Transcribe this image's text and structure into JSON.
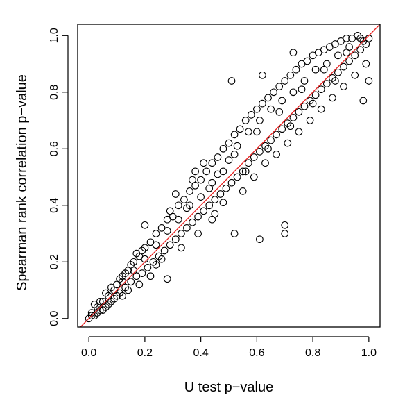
{
  "chart_data": {
    "type": "scatter",
    "title": "",
    "xlabel": "U test p−value",
    "ylabel": "Spearman rank correlation p−value",
    "xlim": [
      -0.04,
      1.04
    ],
    "ylim": [
      -0.03,
      1.04
    ],
    "xticks": [
      0.0,
      0.2,
      0.4,
      0.6,
      0.8,
      1.0
    ],
    "xtick_labels": [
      "0.0",
      "0.2",
      "0.4",
      "0.6",
      "0.8",
      "1.0"
    ],
    "yticks": [
      0.0,
      0.2,
      0.4,
      0.6,
      0.8,
      1.0
    ],
    "ytick_labels": [
      "0.0",
      "0.2",
      "0.4",
      "0.6",
      "0.8",
      "1.0"
    ],
    "grid": false,
    "point_color": "#000000",
    "reference_line": {
      "type": "y=x",
      "color": "#e8201f"
    },
    "points": [
      [
        0.0,
        0.0
      ],
      [
        0.01,
        0.02
      ],
      [
        0.02,
        0.01
      ],
      [
        0.03,
        0.04
      ],
      [
        0.04,
        0.03
      ],
      [
        0.05,
        0.06
      ],
      [
        0.06,
        0.04
      ],
      [
        0.07,
        0.08
      ],
      [
        0.08,
        0.06
      ],
      [
        0.09,
        0.1
      ],
      [
        0.1,
        0.12
      ],
      [
        0.11,
        0.09
      ],
      [
        0.12,
        0.15
      ],
      [
        0.13,
        0.11
      ],
      [
        0.14,
        0.17
      ],
      [
        0.15,
        0.13
      ],
      [
        0.16,
        0.2
      ],
      [
        0.17,
        0.15
      ],
      [
        0.18,
        0.22
      ],
      [
        0.19,
        0.16
      ],
      [
        0.2,
        0.25
      ],
      [
        0.21,
        0.18
      ],
      [
        0.22,
        0.27
      ],
      [
        0.23,
        0.2
      ],
      [
        0.24,
        0.3
      ],
      [
        0.25,
        0.22
      ],
      [
        0.26,
        0.32
      ],
      [
        0.27,
        0.24
      ],
      [
        0.28,
        0.35
      ],
      [
        0.29,
        0.26
      ],
      [
        0.3,
        0.36
      ],
      [
        0.31,
        0.28
      ],
      [
        0.32,
        0.4
      ],
      [
        0.33,
        0.3
      ],
      [
        0.34,
        0.42
      ],
      [
        0.35,
        0.32
      ],
      [
        0.36,
        0.45
      ],
      [
        0.37,
        0.34
      ],
      [
        0.38,
        0.47
      ],
      [
        0.39,
        0.36
      ],
      [
        0.4,
        0.49
      ],
      [
        0.41,
        0.38
      ],
      [
        0.42,
        0.52
      ],
      [
        0.43,
        0.4
      ],
      [
        0.44,
        0.55
      ],
      [
        0.45,
        0.42
      ],
      [
        0.46,
        0.57
      ],
      [
        0.47,
        0.44
      ],
      [
        0.48,
        0.6
      ],
      [
        0.49,
        0.46
      ],
      [
        0.5,
        0.62
      ],
      [
        0.51,
        0.48
      ],
      [
        0.52,
        0.65
      ],
      [
        0.53,
        0.5
      ],
      [
        0.54,
        0.67
      ],
      [
        0.55,
        0.52
      ],
      [
        0.56,
        0.7
      ],
      [
        0.57,
        0.55
      ],
      [
        0.58,
        0.72
      ],
      [
        0.59,
        0.57
      ],
      [
        0.6,
        0.74
      ],
      [
        0.61,
        0.59
      ],
      [
        0.62,
        0.76
      ],
      [
        0.63,
        0.61
      ],
      [
        0.64,
        0.78
      ],
      [
        0.65,
        0.63
      ],
      [
        0.66,
        0.8
      ],
      [
        0.67,
        0.65
      ],
      [
        0.68,
        0.82
      ],
      [
        0.69,
        0.67
      ],
      [
        0.7,
        0.84
      ],
      [
        0.71,
        0.69
      ],
      [
        0.72,
        0.86
      ],
      [
        0.73,
        0.71
      ],
      [
        0.74,
        0.88
      ],
      [
        0.75,
        0.73
      ],
      [
        0.76,
        0.9
      ],
      [
        0.77,
        0.75
      ],
      [
        0.78,
        0.91
      ],
      [
        0.79,
        0.77
      ],
      [
        0.8,
        0.93
      ],
      [
        0.81,
        0.79
      ],
      [
        0.82,
        0.94
      ],
      [
        0.83,
        0.81
      ],
      [
        0.84,
        0.95
      ],
      [
        0.85,
        0.83
      ],
      [
        0.86,
        0.96
      ],
      [
        0.87,
        0.85
      ],
      [
        0.88,
        0.97
      ],
      [
        0.89,
        0.87
      ],
      [
        0.9,
        0.98
      ],
      [
        0.91,
        0.89
      ],
      [
        0.92,
        0.99
      ],
      [
        0.93,
        0.91
      ],
      [
        0.94,
        0.99
      ],
      [
        0.95,
        0.93
      ],
      [
        0.96,
        1.0
      ],
      [
        0.97,
        0.95
      ],
      [
        0.98,
        0.98
      ],
      [
        0.99,
        0.97
      ],
      [
        1.0,
        0.99
      ],
      [
        1.0,
        0.84
      ],
      [
        0.51,
        0.84
      ],
      [
        0.61,
        0.28
      ],
      [
        0.7,
        0.3
      ],
      [
        0.7,
        0.33
      ],
      [
        0.52,
        0.3
      ],
      [
        0.28,
        0.14
      ],
      [
        0.45,
        0.37
      ],
      [
        0.73,
        0.94
      ],
      [
        0.62,
        0.86
      ],
      [
        0.38,
        0.52
      ],
      [
        0.2,
        0.33
      ],
      [
        0.98,
        0.77
      ],
      [
        0.02,
        0.05
      ],
      [
        0.03,
        0.02
      ],
      [
        0.05,
        0.03
      ],
      [
        0.06,
        0.09
      ],
      [
        0.08,
        0.11
      ],
      [
        0.09,
        0.07
      ],
      [
        0.11,
        0.14
      ],
      [
        0.12,
        0.08
      ],
      [
        0.14,
        0.1
      ],
      [
        0.15,
        0.19
      ],
      [
        0.17,
        0.23
      ],
      [
        0.18,
        0.12
      ],
      [
        0.22,
        0.15
      ],
      [
        0.24,
        0.19
      ],
      [
        0.26,
        0.21
      ],
      [
        0.29,
        0.38
      ],
      [
        0.31,
        0.44
      ],
      [
        0.33,
        0.25
      ],
      [
        0.35,
        0.39
      ],
      [
        0.37,
        0.49
      ],
      [
        0.39,
        0.3
      ],
      [
        0.41,
        0.55
      ],
      [
        0.43,
        0.46
      ],
      [
        0.44,
        0.35
      ],
      [
        0.46,
        0.51
      ],
      [
        0.48,
        0.41
      ],
      [
        0.5,
        0.56
      ],
      [
        0.53,
        0.61
      ],
      [
        0.55,
        0.45
      ],
      [
        0.57,
        0.66
      ],
      [
        0.59,
        0.5
      ],
      [
        0.61,
        0.7
      ],
      [
        0.63,
        0.55
      ],
      [
        0.65,
        0.74
      ],
      [
        0.67,
        0.58
      ],
      [
        0.69,
        0.77
      ],
      [
        0.71,
        0.62
      ],
      [
        0.73,
        0.8
      ],
      [
        0.75,
        0.66
      ],
      [
        0.77,
        0.84
      ],
      [
        0.79,
        0.7
      ],
      [
        0.81,
        0.88
      ],
      [
        0.83,
        0.74
      ],
      [
        0.85,
        0.9
      ],
      [
        0.87,
        0.78
      ],
      [
        0.89,
        0.93
      ],
      [
        0.91,
        0.82
      ],
      [
        0.93,
        0.96
      ],
      [
        0.95,
        0.86
      ],
      [
        0.97,
        0.99
      ],
      [
        0.99,
        0.9
      ],
      [
        0.92,
        0.94
      ],
      [
        0.88,
        0.84
      ],
      [
        0.84,
        0.88
      ],
      [
        0.8,
        0.76
      ],
      [
        0.76,
        0.81
      ],
      [
        0.72,
        0.68
      ],
      [
        0.68,
        0.73
      ],
      [
        0.64,
        0.6
      ],
      [
        0.6,
        0.66
      ],
      [
        0.56,
        0.52
      ],
      [
        0.52,
        0.58
      ],
      [
        0.48,
        0.52
      ],
      [
        0.44,
        0.48
      ],
      [
        0.4,
        0.43
      ],
      [
        0.36,
        0.4
      ],
      [
        0.32,
        0.35
      ],
      [
        0.28,
        0.31
      ],
      [
        0.24,
        0.26
      ],
      [
        0.2,
        0.21
      ],
      [
        0.16,
        0.17
      ],
      [
        0.12,
        0.13
      ],
      [
        0.07,
        0.05
      ],
      [
        0.04,
        0.06
      ],
      [
        0.01,
        0.01
      ],
      [
        0.1,
        0.08
      ],
      [
        0.13,
        0.16
      ],
      [
        0.19,
        0.24
      ]
    ]
  }
}
